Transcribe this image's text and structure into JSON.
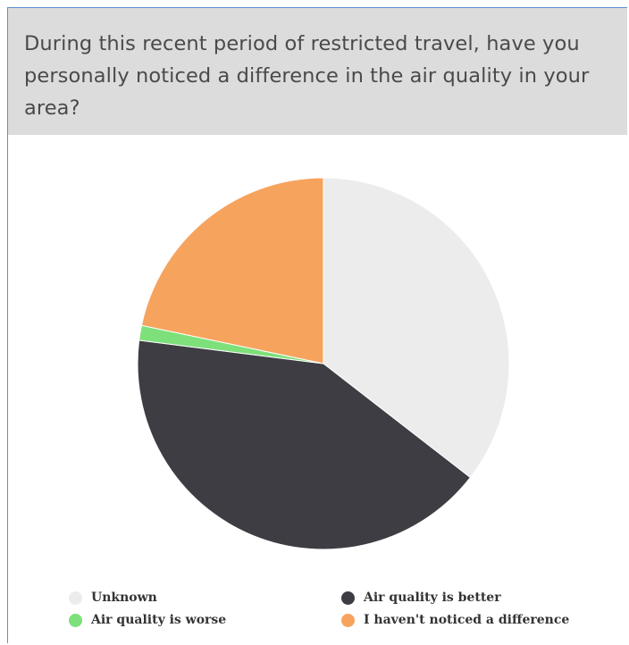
{
  "question": {
    "title": "During this recent period of restricted travel, have you personally noticed a difference in the air quality in your area?"
  },
  "chart_data": {
    "type": "pie",
    "title": "",
    "slices": [
      {
        "label": "Unknown",
        "value": 35.5,
        "color": "#ececec"
      },
      {
        "label": "Air quality is better",
        "value": 41.5,
        "color": "#3d3d43"
      },
      {
        "label": "Air quality is worse",
        "value": 1.3,
        "color": "#7ee07a"
      },
      {
        "label": "I haven't noticed a difference",
        "value": 21.7,
        "color": "#f6a35e"
      }
    ],
    "legend": {
      "placement": "bottom",
      "items": [
        {
          "label": "Unknown",
          "color": "#ececec"
        },
        {
          "label": "Air quality is better",
          "color": "#3d3d43"
        },
        {
          "label": "Air quality is worse",
          "color": "#7ee07a"
        },
        {
          "label": "I haven't noticed a difference",
          "color": "#f6a35e"
        }
      ]
    }
  }
}
